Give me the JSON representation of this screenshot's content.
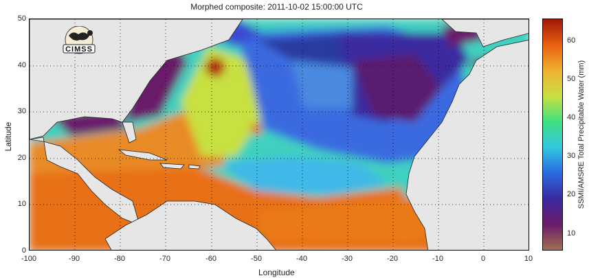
{
  "title": "Morphed composite: 2011-10-02 15:00:00 UTC",
  "logo_text": "CIMSS",
  "axes": {
    "xlabel": "Longitude",
    "ylabel": "Latitude",
    "x_ticks": [
      "-100",
      "-90",
      "-80",
      "-70",
      "-60",
      "-50",
      "-40",
      "-30",
      "-20",
      "-10",
      "0",
      "10"
    ],
    "y_ticks": [
      "0",
      "10",
      "20",
      "30",
      "40",
      "50"
    ],
    "x_range": [
      -100,
      10
    ],
    "y_range": [
      0,
      50
    ]
  },
  "colorbar": {
    "label": "SSMI/AMSRE Total Precipitable Water (mm)",
    "ticks": [
      "10",
      "20",
      "30",
      "40",
      "50",
      "60"
    ],
    "range": [
      5,
      65
    ],
    "colors": [
      "#a07050",
      "#6a1a6a",
      "#3a2aa0",
      "#2a6ae0",
      "#30c8e0",
      "#40e080",
      "#c8e040",
      "#f0b030",
      "#e86010",
      "#a01808"
    ]
  },
  "colors": {
    "land": "#e6e6e6",
    "dry_air": "#6a1a6a",
    "mid_moisture": "#3a5ae0",
    "moist": "#40e080",
    "very_moist": "#e86010"
  }
}
